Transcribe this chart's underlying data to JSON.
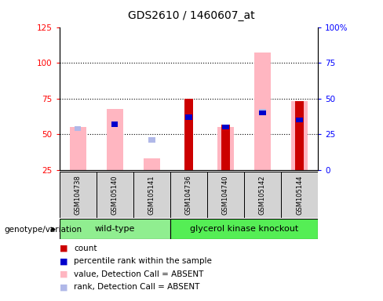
{
  "title": "GDS2610 / 1460607_at",
  "samples": [
    "GSM104738",
    "GSM105140",
    "GSM105141",
    "GSM104736",
    "GSM104740",
    "GSM105142",
    "GSM105144"
  ],
  "wt_indices": [
    0,
    1,
    2
  ],
  "gk_indices": [
    3,
    4,
    5,
    6
  ],
  "ylim_left": [
    25,
    125
  ],
  "ylim_right": [
    0,
    100
  ],
  "yticks_left": [
    25,
    50,
    75,
    100,
    125
  ],
  "yticks_right": [
    0,
    25,
    50,
    75,
    100
  ],
  "ytick_labels_right": [
    "0",
    "25",
    "50",
    "75",
    "100%"
  ],
  "absent_pink_bars": [
    55,
    68,
    33,
    null,
    55,
    107,
    73
  ],
  "absent_blue_bars": [
    54,
    null,
    46,
    null,
    null,
    66,
    null
  ],
  "count_red_bars": [
    null,
    null,
    null,
    75,
    57,
    null,
    73
  ],
  "percentile_blue_bars": [
    null,
    57,
    null,
    62,
    55,
    65,
    60
  ],
  "baseline": 25,
  "absent_pink": "#FFB6C1",
  "absent_blue": "#b0b8e8",
  "count_red": "#cc0000",
  "percentile_blue": "#0000cc",
  "wt_color": "#90EE90",
  "gk_color": "#55EE55",
  "sample_bg": "#d3d3d3",
  "legend_items": [
    [
      "#cc0000",
      "count"
    ],
    [
      "#0000cc",
      "percentile rank within the sample"
    ],
    [
      "#FFB6C1",
      "value, Detection Call = ABSENT"
    ],
    [
      "#b0b8e8",
      "rank, Detection Call = ABSENT"
    ]
  ]
}
